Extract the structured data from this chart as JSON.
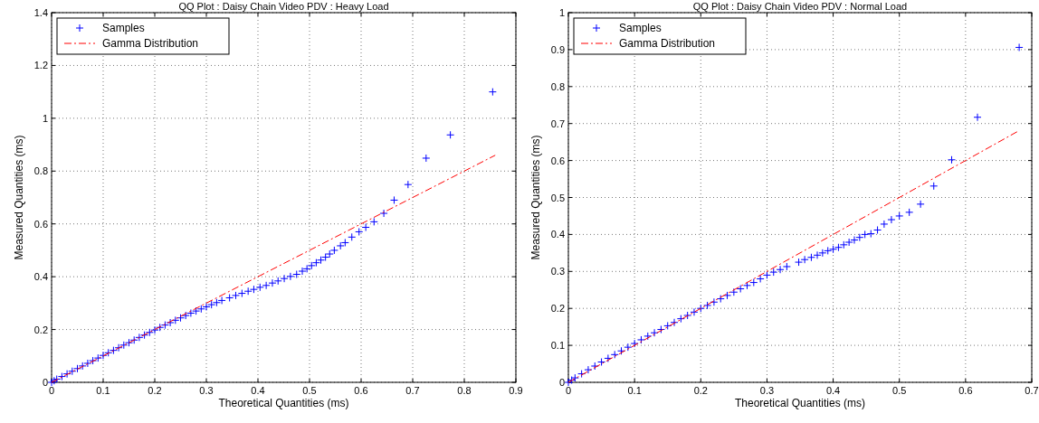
{
  "chart_data": [
    {
      "type": "scatter",
      "title": "QQ Plot : Daisy Chain Video PDV : Heavy Load",
      "xlabel": "Theoretical Quantities (ms)",
      "ylabel": "Measured Quantities (ms)",
      "xlim": [
        0,
        0.9
      ],
      "ylim": [
        0,
        1.4
      ],
      "xticks": [
        0,
        0.1,
        0.2,
        0.3,
        0.4,
        0.5,
        0.6,
        0.7,
        0.8,
        0.9
      ],
      "yticks": [
        0,
        0.2,
        0.4,
        0.6,
        0.8,
        1,
        1.2,
        1.4
      ],
      "grid": true,
      "legend": "top left",
      "series": [
        {
          "name": "Samples",
          "color": "#0000ff",
          "marker": "cross",
          "x": [
            0,
            0.005,
            0.01,
            0.02,
            0.03,
            0.04,
            0.05,
            0.06,
            0.07,
            0.08,
            0.09,
            0.1,
            0.11,
            0.12,
            0.13,
            0.14,
            0.15,
            0.16,
            0.17,
            0.18,
            0.19,
            0.2,
            0.21,
            0.22,
            0.23,
            0.24,
            0.25,
            0.26,
            0.27,
            0.28,
            0.29,
            0.3,
            0.31,
            0.32,
            0.33,
            0.345,
            0.357,
            0.369,
            0.381,
            0.392,
            0.404,
            0.416,
            0.428,
            0.439,
            0.451,
            0.463,
            0.475,
            0.486,
            0.495,
            0.504,
            0.513,
            0.522,
            0.531,
            0.539,
            0.548,
            0.56,
            0.569,
            0.582,
            0.596,
            0.609,
            0.625,
            0.644,
            0.664,
            0.691,
            0.726,
            0.773,
            0.855
          ],
          "values": [
            0,
            0.006,
            0.012,
            0.022,
            0.032,
            0.042,
            0.052,
            0.062,
            0.072,
            0.082,
            0.092,
            0.102,
            0.112,
            0.121,
            0.131,
            0.141,
            0.15,
            0.16,
            0.17,
            0.179,
            0.189,
            0.198,
            0.208,
            0.217,
            0.226,
            0.235,
            0.244,
            0.253,
            0.262,
            0.27,
            0.278,
            0.286,
            0.294,
            0.302,
            0.31,
            0.32,
            0.329,
            0.337,
            0.345,
            0.352,
            0.36,
            0.367,
            0.376,
            0.384,
            0.393,
            0.401,
            0.409,
            0.421,
            0.43,
            0.442,
            0.453,
            0.463,
            0.474,
            0.486,
            0.5,
            0.517,
            0.529,
            0.55,
            0.57,
            0.587,
            0.608,
            0.64,
            0.69,
            0.749,
            0.849,
            0.937,
            1.1
          ]
        },
        {
          "name": "Gamma Distribution",
          "type": "line",
          "color": "#ff0000",
          "line_style": "dashed",
          "x": [
            0,
            0.86
          ],
          "values": [
            0,
            0.86
          ]
        }
      ]
    },
    {
      "type": "scatter",
      "title": "QQ Plot : Daisy Chain Video PDV : Normal Load",
      "xlabel": "Theoretical Quantities (ms)",
      "ylabel": "Measured Quantities (ms)",
      "xlim": [
        0,
        0.7
      ],
      "ylim": [
        0,
        1
      ],
      "xticks": [
        0,
        0.1,
        0.2,
        0.3,
        0.4,
        0.5,
        0.6,
        0.7
      ],
      "yticks": [
        0,
        0.1,
        0.2,
        0.3,
        0.4,
        0.5,
        0.6,
        0.7,
        0.8,
        0.9,
        1
      ],
      "grid": true,
      "legend": "top left",
      "series": [
        {
          "name": "Samples",
          "color": "#0000ff",
          "marker": "cross",
          "x": [
            0,
            0.005,
            0.01,
            0.02,
            0.03,
            0.04,
            0.05,
            0.06,
            0.07,
            0.08,
            0.09,
            0.1,
            0.11,
            0.12,
            0.13,
            0.14,
            0.15,
            0.16,
            0.17,
            0.18,
            0.19,
            0.2,
            0.21,
            0.22,
            0.23,
            0.24,
            0.25,
            0.26,
            0.27,
            0.28,
            0.29,
            0.3,
            0.31,
            0.32,
            0.33,
            0.348,
            0.357,
            0.367,
            0.376,
            0.384,
            0.392,
            0.4,
            0.408,
            0.416,
            0.424,
            0.432,
            0.44,
            0.448,
            0.457,
            0.467,
            0.477,
            0.488,
            0.5,
            0.515,
            0.532,
            0.552,
            0.579,
            0.618,
            0.681
          ],
          "values": [
            0,
            0.006,
            0.012,
            0.023,
            0.034,
            0.044,
            0.055,
            0.065,
            0.075,
            0.085,
            0.095,
            0.105,
            0.115,
            0.125,
            0.134,
            0.143,
            0.153,
            0.162,
            0.172,
            0.181,
            0.19,
            0.2,
            0.208,
            0.217,
            0.226,
            0.235,
            0.244,
            0.253,
            0.262,
            0.27,
            0.28,
            0.29,
            0.298,
            0.305,
            0.313,
            0.325,
            0.332,
            0.338,
            0.344,
            0.35,
            0.356,
            0.36,
            0.365,
            0.372,
            0.379,
            0.385,
            0.392,
            0.4,
            0.402,
            0.412,
            0.428,
            0.44,
            0.45,
            0.46,
            0.482,
            0.531,
            0.602,
            0.717,
            0.906
          ]
        },
        {
          "name": "Gamma Distribution",
          "type": "line",
          "color": "#ff0000",
          "line_style": "dashed",
          "x": [
            0,
            0.68
          ],
          "values": [
            0,
            0.68
          ]
        }
      ]
    }
  ]
}
